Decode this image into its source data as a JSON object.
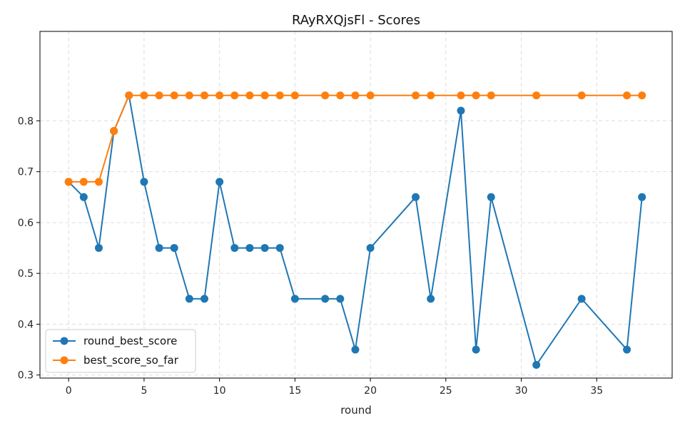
{
  "chart_data": {
    "type": "line",
    "title": "RAyRXQjsFl - Scores",
    "xlabel": "round",
    "ylabel": "",
    "xlim": [
      -1.9,
      40.0
    ],
    "ylim": [
      0.294,
      0.976
    ],
    "xticks": [
      0,
      5,
      10,
      15,
      20,
      25,
      30,
      35
    ],
    "yticks": [
      0.3,
      0.4,
      0.5,
      0.6,
      0.7,
      0.8
    ],
    "grid": true,
    "legend_position": "lower-left",
    "series": [
      {
        "name": "round_best_score",
        "color": "#1f77b4",
        "points": [
          [
            0,
            0.68
          ],
          [
            1,
            0.65
          ],
          [
            2,
            0.55
          ],
          [
            3,
            0.78
          ],
          [
            4,
            0.85
          ],
          [
            5,
            0.68
          ],
          [
            6,
            0.55
          ],
          [
            7,
            0.55
          ],
          [
            8,
            0.45
          ],
          [
            9,
            0.45
          ],
          [
            10,
            0.68
          ],
          [
            11,
            0.55
          ],
          [
            12,
            0.55
          ],
          [
            13,
            0.55
          ],
          [
            14,
            0.55
          ],
          [
            15,
            0.45
          ],
          [
            17,
            0.45
          ],
          [
            18,
            0.45
          ],
          [
            19,
            0.35
          ],
          [
            20,
            0.55
          ],
          [
            23,
            0.65
          ],
          [
            24,
            0.45
          ],
          [
            26,
            0.82
          ],
          [
            27,
            0.35
          ],
          [
            28,
            0.65
          ],
          [
            31,
            0.32
          ],
          [
            34,
            0.45
          ],
          [
            37,
            0.35
          ],
          [
            38,
            0.65
          ]
        ]
      },
      {
        "name": "best_score_so_far",
        "color": "#ff7f0e",
        "points": [
          [
            0,
            0.68
          ],
          [
            1,
            0.68
          ],
          [
            2,
            0.68
          ],
          [
            3,
            0.78
          ],
          [
            4,
            0.85
          ],
          [
            5,
            0.85
          ],
          [
            6,
            0.85
          ],
          [
            7,
            0.85
          ],
          [
            8,
            0.85
          ],
          [
            9,
            0.85
          ],
          [
            10,
            0.85
          ],
          [
            11,
            0.85
          ],
          [
            12,
            0.85
          ],
          [
            13,
            0.85
          ],
          [
            14,
            0.85
          ],
          [
            15,
            0.85
          ],
          [
            17,
            0.85
          ],
          [
            18,
            0.85
          ],
          [
            19,
            0.85
          ],
          [
            20,
            0.85
          ],
          [
            23,
            0.85
          ],
          [
            24,
            0.85
          ],
          [
            26,
            0.85
          ],
          [
            27,
            0.85
          ],
          [
            28,
            0.85
          ],
          [
            31,
            0.85
          ],
          [
            34,
            0.85
          ],
          [
            37,
            0.85
          ],
          [
            38,
            0.85
          ]
        ]
      }
    ]
  }
}
